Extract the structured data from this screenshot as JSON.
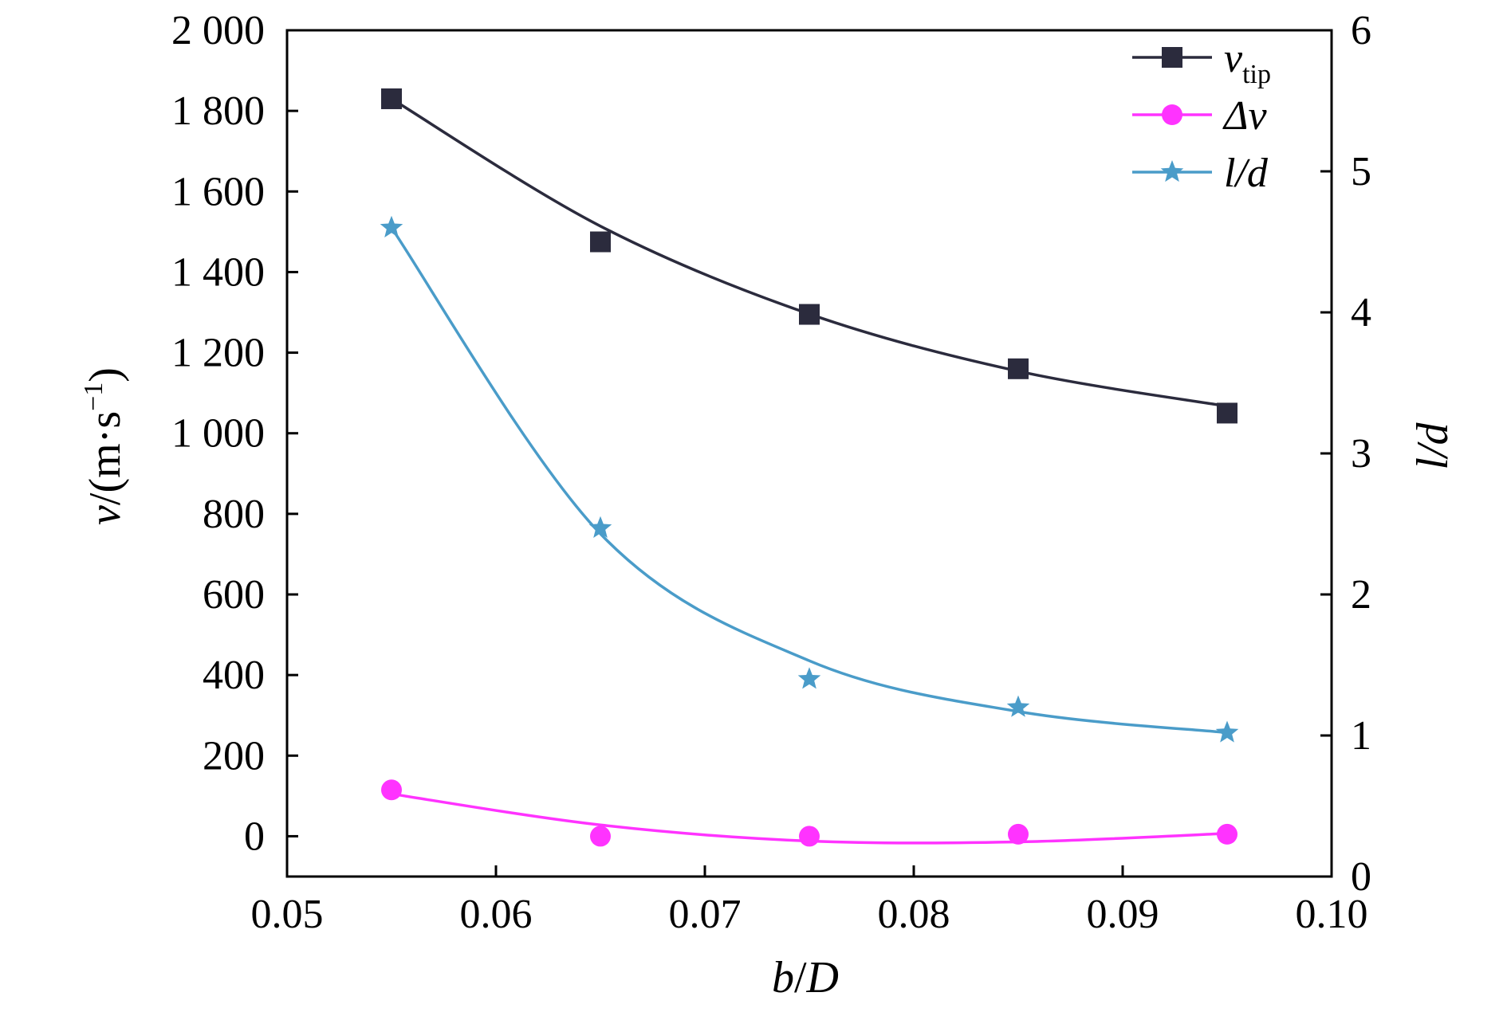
{
  "chart_data": {
    "type": "scatter",
    "title": "",
    "xlabel": {
      "base": "b",
      "sep": "/",
      "sub": "D"
    },
    "ylabel": {
      "var": "v",
      "unit": "/(m·s",
      "exp": "−1",
      "close": ")"
    },
    "y2label": "l/d",
    "xlim": [
      0.05,
      0.1
    ],
    "ylim": [
      -100,
      2000
    ],
    "y2lim": [
      0,
      6
    ],
    "xticks": [
      "0.05",
      "0.06",
      "0.07",
      "0.08",
      "0.09",
      "0.10"
    ],
    "yticks": [
      "0",
      "200",
      "400",
      "600",
      "800",
      "1 000",
      "1 200",
      "1 400",
      "1 600",
      "1 800",
      "2 000"
    ],
    "y2ticks": [
      "0",
      "1",
      "2",
      "3",
      "4",
      "5",
      "6"
    ],
    "x": [
      0.055,
      0.065,
      0.075,
      0.085,
      0.095
    ],
    "series": [
      {
        "name": "v",
        "name_sub": "tip",
        "axis": "left",
        "marker": "square",
        "color": "#2b2b3d",
        "values": [
          1830,
          1475,
          1295,
          1160,
          1050
        ],
        "fit": [
          1830,
          1514,
          1296,
          1154,
          1067
        ]
      },
      {
        "name": "Δv",
        "axis": "left",
        "marker": "circle",
        "color": "#ff33ff",
        "values": [
          115,
          0,
          0,
          5,
          5
        ],
        "fit": [
          105,
          28,
          -12,
          -14,
          7
        ]
      },
      {
        "name": "l/d",
        "axis": "right",
        "marker": "star",
        "color": "#4a9cc9",
        "values": [
          4.6,
          2.47,
          1.4,
          1.2,
          1.02
        ],
        "fit": [
          4.6,
          2.43,
          1.53,
          1.17,
          1.02
        ]
      }
    ],
    "legend_position": "top-right",
    "grid": false
  }
}
